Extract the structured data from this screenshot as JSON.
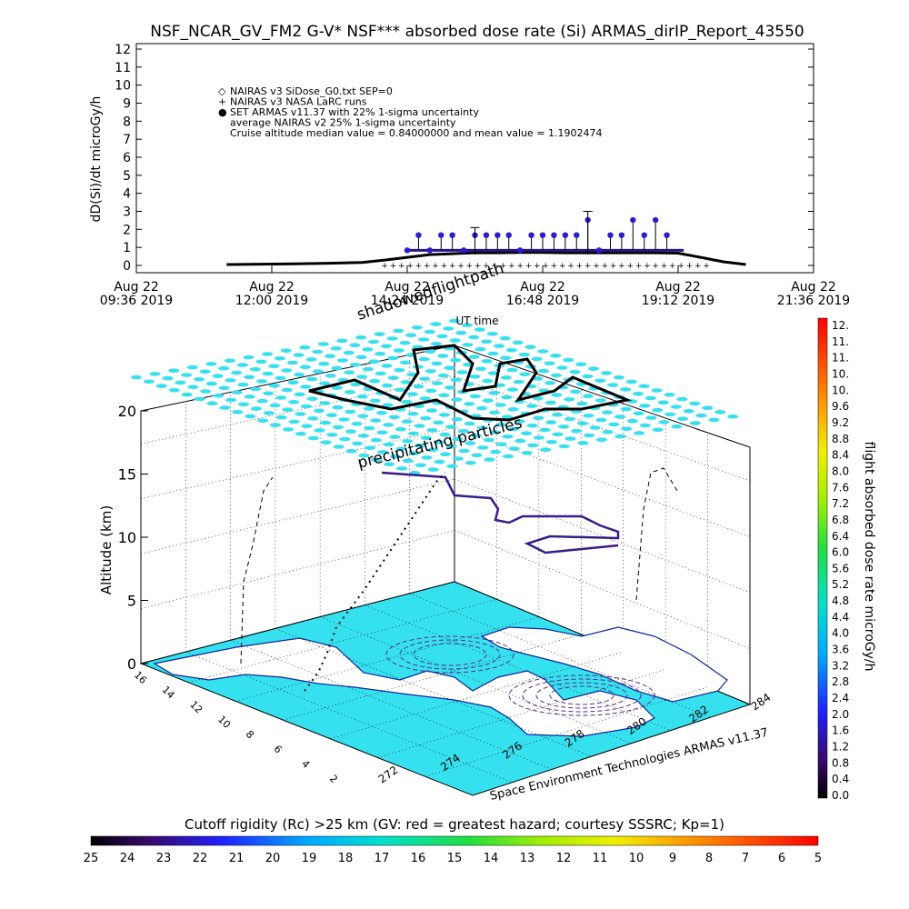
{
  "title": "NSF_NCAR_GV_FM2 G-V* NSF*** absorbed dose rate (Si) ARMAS_dirIP_Report_43550",
  "chart_data": [
    {
      "type": "scatter",
      "title": "NSF_NCAR_GV_FM2 G-V* NSF*** absorbed dose rate (Si) ARMAS_dirIP_Report_43550",
      "ylabel": "dD(Si)/dt microGy/h",
      "xlabel": "UT time",
      "ylim": [
        0,
        12
      ],
      "yticks": [
        "0",
        "1",
        "2",
        "3",
        "4",
        "5",
        "6",
        "7",
        "8",
        "9",
        "10",
        "11",
        "12"
      ],
      "xticks": [
        {
          "top": "Aug 22",
          "bottom": "09:36 2019"
        },
        {
          "top": "Aug 22",
          "bottom": "12:00 2019"
        },
        {
          "top": "Aug 22",
          "bottom": "14:24 2019"
        },
        {
          "top": "Aug 22",
          "bottom": "16:48 2019"
        },
        {
          "top": "Aug 22",
          "bottom": "19:12 2019"
        },
        {
          "top": "Aug 22",
          "bottom": "21:36 2019"
        }
      ],
      "xrange_hours": [
        9.6,
        21.6
      ],
      "legend_placement": "top-left",
      "legend": [
        {
          "symbol": "◇",
          "text": "NAIRAS v3 SiDose_G0.txt SEP=0"
        },
        {
          "symbol": "+",
          "text": "NAIRAS v3 NASA LaRC runs"
        },
        {
          "symbol": "●",
          "text": "SET ARMAS v11.37 with 22% 1-sigma uncertainty"
        },
        {
          "symbol": "",
          "text": "average NAIRAS v2 25% 1-sigma uncertainty"
        },
        {
          "symbol": "",
          "text": "Cruise altitude median value = 0.84000000 and mean value = 1.1902474"
        }
      ],
      "series": [
        {
          "name": "NAIRAS v3 SiDose_G0.txt SEP=0",
          "color": "#000000",
          "x": [
            11.2,
            11.8,
            12.4,
            13.0,
            13.6,
            14.0,
            14.4,
            14.8,
            15.2,
            15.6,
            16.0,
            16.4,
            16.8,
            17.2,
            17.6,
            18.0,
            18.4,
            18.8,
            19.2,
            19.6,
            20.0,
            20.4
          ],
          "y": [
            0.05,
            0.07,
            0.09,
            0.12,
            0.16,
            0.3,
            0.45,
            0.6,
            0.65,
            0.7,
            0.7,
            0.72,
            0.72,
            0.7,
            0.7,
            0.7,
            0.7,
            0.7,
            0.68,
            0.45,
            0.2,
            0.05
          ]
        },
        {
          "name": "SET ARMAS v11.37 with 22% 1-sigma uncertainty",
          "color": "#2a1adc",
          "x": [
            14.4,
            14.6,
            14.8,
            15.0,
            15.2,
            15.4,
            15.6,
            15.8,
            16.0,
            16.2,
            16.4,
            16.6,
            16.8,
            17.0,
            17.2,
            17.4,
            17.6,
            17.8,
            18.0,
            18.2,
            18.4,
            18.6,
            18.8,
            19.0
          ],
          "y": [
            0.84,
            1.68,
            0.84,
            1.68,
            1.68,
            0.84,
            1.68,
            1.68,
            1.68,
            1.68,
            0.84,
            1.68,
            1.68,
            1.68,
            1.68,
            1.68,
            2.52,
            0.84,
            1.68,
            1.68,
            2.52,
            1.68,
            2.52,
            1.68
          ]
        }
      ]
    },
    {
      "type": "scatter",
      "title": "",
      "zlabel": "Altitude (km)",
      "zticks": [
        "0",
        "5",
        "10",
        "15",
        "20"
      ],
      "lat_ticks": [
        "16",
        "14",
        "12",
        "10",
        "8",
        "6",
        "4",
        "2"
      ],
      "lon_ticks": [
        "272",
        "274",
        "276",
        "278",
        "280",
        "282",
        "284"
      ],
      "annotations": [
        "shadowedflightpath",
        "precipitating particles"
      ],
      "credit": "Space Environment Technologies ARMAS v11.37"
    }
  ],
  "overlay_labels": {
    "ut_time": "UT time",
    "shadowed": "shadowedflightpath",
    "precip": "precipitating particles",
    "credit": "Space Environment Technologies ARMAS v11.37",
    "altitude": "Altitude (km)",
    "dose_axis": "flight absorbed dose rate microGy/h",
    "cutoff": "Cutoff rigidity (Rc) >25 km (GV: red = greatest hazard; courtesy SSSRC; Kp=1)"
  },
  "dose_colorbar": {
    "labels": [
      "12.",
      "11.",
      "11.",
      "10.",
      "10.",
      "9.6",
      "9.2",
      "8.8",
      "8.4",
      "8.0",
      "7.6",
      "7.2",
      "6.8",
      "6.4",
      "6.0",
      "5.6",
      "5.2",
      "4.8",
      "4.4",
      "4.0",
      "3.6",
      "3.2",
      "2.8",
      "2.4",
      "2.0",
      "1.6",
      "1.2",
      "0.8",
      "0.4",
      "0.0"
    ]
  },
  "cutoff_colorbar": {
    "labels": [
      "25",
      "24",
      "23",
      "22",
      "21",
      "20",
      "19",
      "18",
      "17",
      "16",
      "15",
      "14",
      "13",
      "12",
      "11",
      "10",
      "9",
      "8",
      "7",
      "6",
      "5"
    ]
  },
  "colors": {
    "ocean_land": "#36e1ef",
    "flight_path": "#000000",
    "shadow_path": "#3a1a8a",
    "armas_points": "#2a1adc",
    "armas_line": "#2a1288"
  }
}
